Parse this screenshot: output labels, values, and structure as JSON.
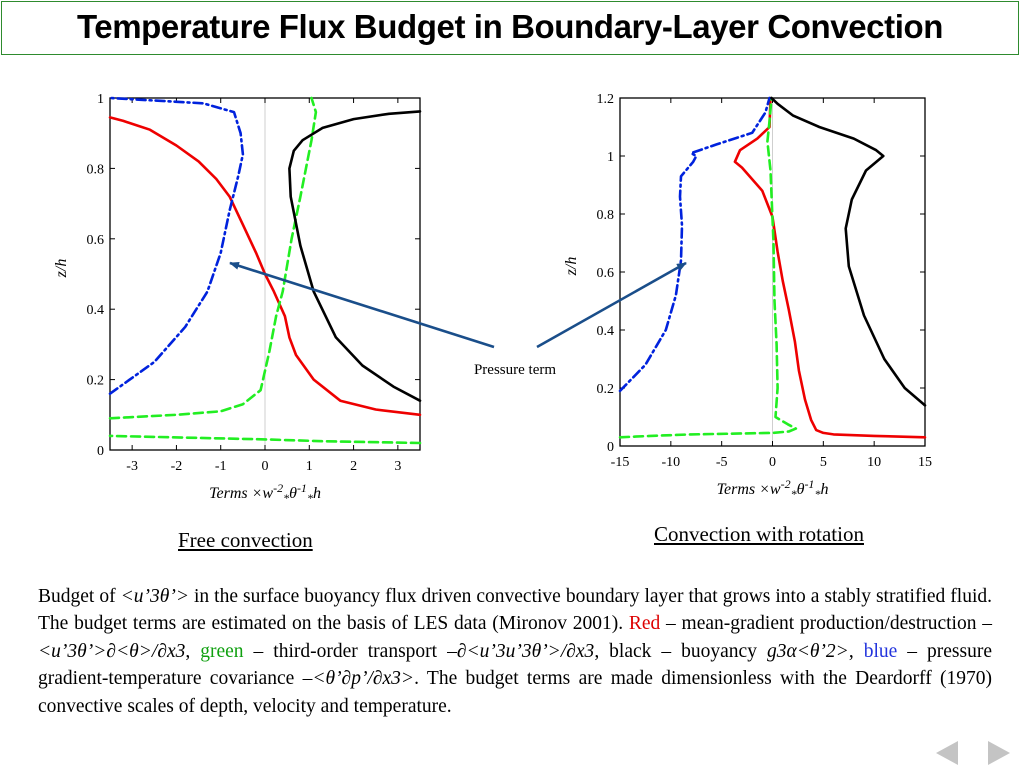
{
  "title": "Temperature Flux Budget in Boundary-Layer Convection",
  "colors": {
    "red": "#ee0000",
    "green": "#22ee22",
    "blue": "#0022dd",
    "black": "#000000",
    "arrow": "#1a4e8a",
    "title_border": "#2e8b2e"
  },
  "annotation": "Pressure term",
  "chart_data": [
    {
      "type": "line",
      "caption": "Free convection",
      "ylabel": "z/h",
      "xlabel": "Terms ×w*^-2 θ*^-1 h",
      "xlim": [
        -3.5,
        3.5
      ],
      "ylim": [
        0,
        1
      ],
      "xticks": [
        -3,
        -2,
        -1,
        0,
        1,
        2,
        3
      ],
      "yticks": [
        0,
        0.2,
        0.4,
        0.6,
        0.8,
        1
      ],
      "ytick_labels": [
        "0",
        "0.2",
        "0.4",
        "0.6",
        "0.8",
        "1"
      ],
      "series": [
        {
          "color": "red",
          "dash": "solid",
          "points": [
            [
              -3.5,
              0.945
            ],
            [
              -3.2,
              0.935
            ],
            [
              -2.6,
              0.91
            ],
            [
              -2.0,
              0.865
            ],
            [
              -1.5,
              0.82
            ],
            [
              -1.1,
              0.77
            ],
            [
              -0.8,
              0.72
            ],
            [
              -0.5,
              0.64
            ],
            [
              -0.2,
              0.56
            ],
            [
              0,
              0.5
            ],
            [
              0.2,
              0.45
            ],
            [
              0.45,
              0.38
            ],
            [
              0.55,
              0.32
            ],
            [
              0.7,
              0.27
            ],
            [
              1.1,
              0.2
            ],
            [
              1.7,
              0.14
            ],
            [
              2.5,
              0.115
            ],
            [
              3.5,
              0.1
            ]
          ]
        },
        {
          "color": "green",
          "dash": "dashed",
          "points": [
            [
              3.5,
              0.02
            ],
            [
              1.3,
              0.025
            ],
            [
              0,
              0.03
            ],
            [
              -3.5,
              0.04
            ],
            null,
            [
              -3.5,
              0.09
            ],
            [
              -2.0,
              0.1
            ],
            [
              -1.0,
              0.11
            ],
            [
              -0.5,
              0.13
            ],
            [
              -0.1,
              0.17
            ],
            [
              0.1,
              0.28
            ],
            [
              0.25,
              0.38
            ],
            [
              0.4,
              0.45
            ],
            [
              0.6,
              0.6
            ],
            [
              0.8,
              0.72
            ],
            [
              1.05,
              0.88
            ],
            [
              1.15,
              0.96
            ],
            [
              1.05,
              1.0
            ]
          ]
        },
        {
          "color": "blue",
          "dash": "dashdot",
          "points": [
            [
              -3.5,
              0.16
            ],
            [
              -2.5,
              0.25
            ],
            [
              -1.8,
              0.35
            ],
            [
              -1.3,
              0.45
            ],
            [
              -1.0,
              0.56
            ],
            [
              -0.8,
              0.68
            ],
            [
              -0.6,
              0.78
            ],
            [
              -0.5,
              0.84
            ],
            [
              -0.55,
              0.9
            ],
            [
              -0.7,
              0.96
            ],
            [
              -1.4,
              0.985
            ],
            [
              -3.5,
              1.0
            ]
          ]
        },
        {
          "color": "black",
          "dash": "solid",
          "points": [
            [
              3.5,
              0.14
            ],
            [
              2.9,
              0.18
            ],
            [
              2.2,
              0.24
            ],
            [
              1.6,
              0.32
            ],
            [
              1.1,
              0.45
            ],
            [
              0.8,
              0.58
            ],
            [
              0.58,
              0.72
            ],
            [
              0.55,
              0.8
            ],
            [
              0.65,
              0.85
            ],
            [
              0.85,
              0.88
            ],
            [
              1.3,
              0.915
            ],
            [
              2.0,
              0.94
            ],
            [
              2.8,
              0.955
            ],
            [
              3.5,
              0.962
            ]
          ]
        }
      ]
    },
    {
      "type": "line",
      "caption": "Convection with rotation",
      "ylabel": "z/h",
      "xlabel": "Terms ×w*^-2 θ*^-1 h",
      "xlim": [
        -15,
        15
      ],
      "ylim": [
        0,
        1.2
      ],
      "xticks": [
        -15,
        -10,
        -5,
        0,
        5,
        10,
        15
      ],
      "yticks": [
        0,
        0.2,
        0.4,
        0.6,
        0.8,
        1,
        1.2
      ],
      "ytick_labels": [
        "0",
        "0.2",
        "0.4",
        "0.6",
        "0.8",
        "1",
        "1.2"
      ],
      "series": [
        {
          "color": "red",
          "dash": "solid",
          "points": [
            [
              15,
              0.03
            ],
            [
              10,
              0.035
            ],
            [
              6,
              0.04
            ],
            [
              5,
              0.045
            ],
            [
              4.3,
              0.055
            ],
            [
              3.8,
              0.09
            ],
            [
              3.2,
              0.16
            ],
            [
              2.6,
              0.26
            ],
            [
              2.2,
              0.36
            ],
            [
              1.6,
              0.47
            ],
            [
              1.0,
              0.57
            ],
            [
              0.5,
              0.67
            ],
            [
              0,
              0.79
            ],
            [
              -1.0,
              0.88
            ],
            [
              -3.0,
              0.96
            ],
            [
              -3.7,
              0.98
            ],
            [
              -3.2,
              1.02
            ],
            [
              -1.5,
              1.06
            ],
            [
              -0.3,
              1.1
            ],
            [
              -0.2,
              1.2
            ]
          ]
        },
        {
          "color": "green",
          "dash": "dashed",
          "points": [
            [
              -15,
              0.03
            ],
            [
              -12,
              0.035
            ],
            [
              -8,
              0.04
            ],
            [
              0,
              0.045
            ],
            [
              1.6,
              0.05
            ],
            [
              2.3,
              0.06
            ],
            [
              1.5,
              0.075
            ],
            [
              0.3,
              0.1
            ],
            [
              0.5,
              0.2
            ],
            [
              0.4,
              0.35
            ],
            [
              0.2,
              0.5
            ],
            [
              0.1,
              0.7
            ],
            [
              -0.2,
              0.95
            ],
            [
              -0.5,
              1.05
            ],
            [
              -0.3,
              1.12
            ],
            [
              -0.1,
              1.2
            ]
          ]
        },
        {
          "color": "blue",
          "dash": "dashdot",
          "points": [
            [
              -15,
              0.19
            ],
            [
              -12.5,
              0.28
            ],
            [
              -10.5,
              0.4
            ],
            [
              -9.5,
              0.52
            ],
            [
              -9.0,
              0.64
            ],
            [
              -8.9,
              0.76
            ],
            [
              -9.1,
              0.86
            ],
            [
              -9.0,
              0.93
            ],
            [
              -7.8,
              0.98
            ],
            [
              -7.5,
              1.0
            ],
            [
              -8.0,
              1.01
            ],
            [
              -5.5,
              1.04
            ],
            [
              -2.0,
              1.08
            ],
            [
              -0.7,
              1.15
            ],
            [
              -0.3,
              1.2
            ]
          ]
        },
        {
          "color": "black",
          "dash": "solid",
          "points": [
            [
              15,
              0.14
            ],
            [
              13,
              0.2
            ],
            [
              11,
              0.3
            ],
            [
              9,
              0.45
            ],
            [
              7.5,
              0.62
            ],
            [
              7.2,
              0.75
            ],
            [
              7.8,
              0.85
            ],
            [
              9.2,
              0.95
            ],
            [
              10.9,
              1.0
            ],
            [
              10.2,
              1.02
            ],
            [
              8.0,
              1.06
            ],
            [
              4.6,
              1.1
            ],
            [
              2.0,
              1.14
            ],
            [
              0.5,
              1.18
            ],
            [
              -0.1,
              1.2
            ]
          ]
        }
      ]
    }
  ],
  "body": {
    "p_budget_of": "Budget of ",
    "p_flux": "<u’3θ’>",
    "p_main": " in the surface buoyancy flux driven convective boundary layer that grows into a stably stratified fluid. The budget terms are estimated on the basis of LES data (Mironov 2001). ",
    "red_word": "Red",
    "red_desc": " – mean-gradient production/destruction ",
    "red_formula": "–<u’3θ’>∂<θ>/∂x3",
    "comma1": ", ",
    "green_word": "green",
    "green_desc": " – third-order transport ",
    "green_formula": "–∂<u’3u’3θ’>/∂x3",
    "black_desc": ", black – buoyancy ",
    "black_formula": "g3α<θ’2>",
    "comma2": ", ",
    "blue_word": "blue",
    "blue_desc": " – pressure gradient-temperature covariance ",
    "blue_formula": "–<θ’∂p’/∂x3>",
    "p_tail": ". The budget terms are made dimensionless with the Deardorff (1970) convective scales of depth, velocity and temperature."
  },
  "nav": {
    "prev": "previous-slide",
    "next": "next-slide"
  }
}
